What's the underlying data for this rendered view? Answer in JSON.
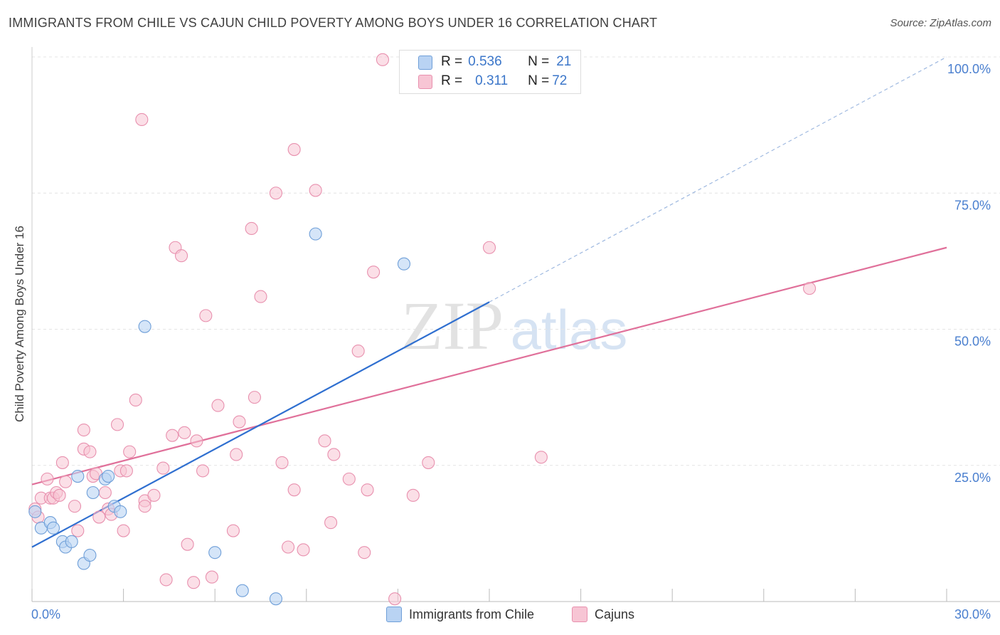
{
  "title": "IMMIGRANTS FROM CHILE VS CAJUN CHILD POVERTY AMONG BOYS UNDER 16 CORRELATION CHART",
  "source": "Source: ZipAtlas.com",
  "watermark": {
    "zip": "ZIP",
    "atlas": "atlas"
  },
  "colors": {
    "blue_fill": "#b9d3f3",
    "blue_stroke": "#6f9fd8",
    "blue_line": "#2f6fd0",
    "pink_fill": "#f7c5d4",
    "pink_stroke": "#e890ae",
    "pink_line": "#e0709a",
    "axis_text": "#4a7fcf"
  },
  "legend": {
    "rows": [
      {
        "r_label": "R =",
        "r_value": "0.536",
        "n_label": "N =",
        "n_value": "21"
      },
      {
        "r_label": "R =",
        "r_value": "0.311",
        "n_label": "N =",
        "n_value": "72"
      }
    ]
  },
  "bottom_legend": {
    "blue": "Immigrants from Chile",
    "pink": "Cajuns"
  },
  "chart_data": {
    "type": "scatter",
    "xlabel": "",
    "ylabel": "Child Poverty Among Boys Under 16",
    "xlim": [
      0,
      30
    ],
    "ylim": [
      0,
      100
    ],
    "x_tick_labels": [
      {
        "value": 0,
        "label": "0.0%"
      },
      {
        "value": 30,
        "label": "30.0%"
      }
    ],
    "y_tick_labels": [
      {
        "value": 25,
        "label": "25.0%"
      },
      {
        "value": 50,
        "label": "50.0%"
      },
      {
        "value": 75,
        "label": "75.0%"
      },
      {
        "value": 100,
        "label": "100.0%"
      }
    ],
    "series": [
      {
        "name": "Immigrants from Chile",
        "color": "blue",
        "r": 0.536,
        "n": 21,
        "trend": {
          "x0": 0,
          "y0": 10.0,
          "x1": 15.0,
          "y1": 55.0,
          "dash_to_x": 30.0,
          "dash_to_y": 100.0
        },
        "points": [
          [
            0.1,
            16.5
          ],
          [
            0.3,
            13.5
          ],
          [
            0.6,
            14.5
          ],
          [
            0.7,
            13.5
          ],
          [
            1.0,
            11.0
          ],
          [
            1.1,
            10.0
          ],
          [
            1.3,
            11.0
          ],
          [
            1.5,
            23.0
          ],
          [
            1.7,
            7.0
          ],
          [
            1.9,
            8.5
          ],
          [
            2.0,
            20.0
          ],
          [
            2.4,
            22.5
          ],
          [
            2.5,
            23.0
          ],
          [
            2.7,
            17.5
          ],
          [
            2.9,
            16.5
          ],
          [
            3.7,
            50.5
          ],
          [
            6.0,
            9.0
          ],
          [
            6.9,
            2.0
          ],
          [
            8.0,
            0.5
          ],
          [
            9.3,
            67.5
          ],
          [
            12.2,
            62.0
          ]
        ]
      },
      {
        "name": "Cajuns",
        "color": "pink",
        "r": 0.311,
        "n": 72,
        "trend": {
          "x0": 0,
          "y0": 21.5,
          "x1": 30.0,
          "y1": 65.0
        },
        "points": [
          [
            0.1,
            17.0
          ],
          [
            0.2,
            15.5
          ],
          [
            0.3,
            19.0
          ],
          [
            0.5,
            22.5
          ],
          [
            0.6,
            19.0
          ],
          [
            0.7,
            19.0
          ],
          [
            0.8,
            20.0
          ],
          [
            0.9,
            19.5
          ],
          [
            1.0,
            25.5
          ],
          [
            1.1,
            22.0
          ],
          [
            1.4,
            17.5
          ],
          [
            1.5,
            13.0
          ],
          [
            1.7,
            28.0
          ],
          [
            1.7,
            31.5
          ],
          [
            1.9,
            27.5
          ],
          [
            2.0,
            23.0
          ],
          [
            2.1,
            23.5
          ],
          [
            2.2,
            15.5
          ],
          [
            2.4,
            20.0
          ],
          [
            2.5,
            17.0
          ],
          [
            2.6,
            16.0
          ],
          [
            2.8,
            32.5
          ],
          [
            2.9,
            24.0
          ],
          [
            3.0,
            13.0
          ],
          [
            3.1,
            24.0
          ],
          [
            3.2,
            27.5
          ],
          [
            3.4,
            37.0
          ],
          [
            3.6,
            88.5
          ],
          [
            3.7,
            18.5
          ],
          [
            3.7,
            17.5
          ],
          [
            4.0,
            19.5
          ],
          [
            4.3,
            24.5
          ],
          [
            4.4,
            4.0
          ],
          [
            4.6,
            30.5
          ],
          [
            4.7,
            65.0
          ],
          [
            4.9,
            63.5
          ],
          [
            5.0,
            31.0
          ],
          [
            5.1,
            10.5
          ],
          [
            5.3,
            3.5
          ],
          [
            5.4,
            29.5
          ],
          [
            5.6,
            24.0
          ],
          [
            5.7,
            52.5
          ],
          [
            5.9,
            4.5
          ],
          [
            6.1,
            36.0
          ],
          [
            6.6,
            13.0
          ],
          [
            6.7,
            27.0
          ],
          [
            6.8,
            33.0
          ],
          [
            7.2,
            68.5
          ],
          [
            7.3,
            37.5
          ],
          [
            7.5,
            56.0
          ],
          [
            8.0,
            75.0
          ],
          [
            8.2,
            25.5
          ],
          [
            8.4,
            10.0
          ],
          [
            8.6,
            20.5
          ],
          [
            8.6,
            83.0
          ],
          [
            8.9,
            9.5
          ],
          [
            9.3,
            75.5
          ],
          [
            9.6,
            29.5
          ],
          [
            9.8,
            14.5
          ],
          [
            9.9,
            27.0
          ],
          [
            10.4,
            22.5
          ],
          [
            10.7,
            46.0
          ],
          [
            10.9,
            9.0
          ],
          [
            11.0,
            20.5
          ],
          [
            11.2,
            60.5
          ],
          [
            11.5,
            99.5
          ],
          [
            11.9,
            0.5
          ],
          [
            12.5,
            19.5
          ],
          [
            13.0,
            25.5
          ],
          [
            15.0,
            65.0
          ],
          [
            16.7,
            26.5
          ],
          [
            25.5,
            57.5
          ]
        ]
      }
    ]
  }
}
